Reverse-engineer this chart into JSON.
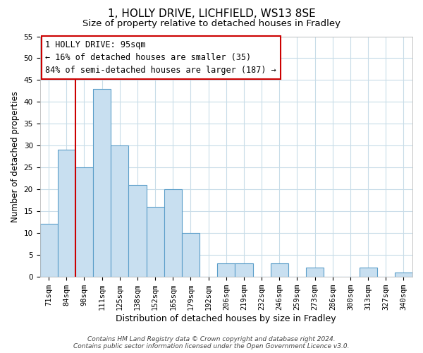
{
  "title": "1, HOLLY DRIVE, LICHFIELD, WS13 8SE",
  "subtitle": "Size of property relative to detached houses in Fradley",
  "xlabel": "Distribution of detached houses by size in Fradley",
  "ylabel": "Number of detached properties",
  "bin_labels": [
    "71sqm",
    "84sqm",
    "98sqm",
    "111sqm",
    "125sqm",
    "138sqm",
    "152sqm",
    "165sqm",
    "179sqm",
    "192sqm",
    "206sqm",
    "219sqm",
    "232sqm",
    "246sqm",
    "259sqm",
    "273sqm",
    "286sqm",
    "300sqm",
    "313sqm",
    "327sqm",
    "340sqm"
  ],
  "bar_heights": [
    12,
    29,
    25,
    43,
    30,
    21,
    16,
    20,
    10,
    0,
    3,
    3,
    0,
    3,
    0,
    2,
    0,
    0,
    2,
    0,
    1
  ],
  "bar_color": "#c8dff0",
  "bar_edge_color": "#5b9ec9",
  "vline_color": "#cc0000",
  "vline_x": 2,
  "ylim": [
    0,
    55
  ],
  "yticks": [
    0,
    5,
    10,
    15,
    20,
    25,
    30,
    35,
    40,
    45,
    50,
    55
  ],
  "ann_line1": "1 HOLLY DRIVE: 95sqm",
  "ann_line2": "← 16% of detached houses are smaller (35)",
  "ann_line3": "84% of semi-detached houses are larger (187) →",
  "footer_line1": "Contains HM Land Registry data © Crown copyright and database right 2024.",
  "footer_line2": "Contains public sector information licensed under the Open Government Licence v3.0.",
  "background_color": "#ffffff",
  "grid_color": "#c8dce8",
  "title_fontsize": 11,
  "subtitle_fontsize": 9.5,
  "xlabel_fontsize": 9,
  "ylabel_fontsize": 8.5,
  "tick_fontsize": 7.5,
  "ann_fontsize": 8.5,
  "footer_fontsize": 6.5
}
